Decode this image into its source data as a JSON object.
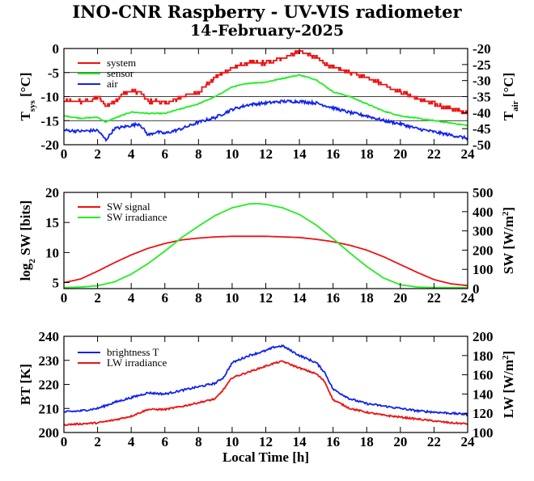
{
  "title": "INO-CNR Raspberry - UV-VIS radiometer",
  "subtitle": "14-February-2025",
  "chart_data": [
    {
      "type": "line",
      "x_ticks": [
        "0",
        "2",
        "4",
        "6",
        "8",
        "10",
        "12",
        "14",
        "16",
        "18",
        "20",
        "22",
        "24"
      ],
      "xlim": [
        0,
        24
      ],
      "xlabel": "",
      "ylabel_left": {
        "main": "T",
        "sub": "sys",
        "unit": " [°C]"
      },
      "ylabel_right": {
        "main": "T",
        "sub": "air",
        "unit": " [°C]"
      },
      "ylim": [
        -20,
        0
      ],
      "ylim_right": [
        -50,
        -20
      ],
      "y_ticks": [
        "-20",
        "-15",
        "-10",
        "-5",
        "0"
      ],
      "y_ticks_right": [
        "-50",
        "-45",
        "-40",
        "-35",
        "-30",
        "-25",
        "-20"
      ],
      "grid": "horizontal",
      "legend_position": "top-left",
      "series": [
        {
          "name": "system",
          "color": "#ee1111",
          "axis": "left",
          "step": 0.5,
          "noise": 0.35,
          "x": [
            0,
            1,
            1.5,
            2,
            2.5,
            3,
            3.5,
            4,
            4.5,
            5,
            5.5,
            6,
            7,
            8,
            9,
            10,
            11,
            12,
            13,
            14,
            15,
            16,
            17,
            18,
            19,
            20,
            21,
            22,
            23,
            24
          ],
          "y": [
            -11,
            -11,
            -11,
            -10,
            -12,
            -11,
            -9.5,
            -9,
            -9,
            -11,
            -11,
            -11.5,
            -10,
            -9,
            -6,
            -4,
            -3,
            -3,
            -2,
            -0.5,
            -2,
            -4,
            -5,
            -6,
            -7.5,
            -9,
            -10.5,
            -11.5,
            -12.5,
            -13.5
          ]
        },
        {
          "name": "sensor",
          "color": "#22ee22",
          "axis": "left",
          "step": 0,
          "noise": 0.1,
          "x": [
            0,
            1,
            2,
            2.5,
            3,
            4,
            5,
            6,
            7,
            8,
            9,
            10,
            11,
            12,
            13,
            14,
            15,
            16,
            17,
            18,
            19,
            20,
            21,
            22,
            23,
            24
          ],
          "y": [
            -14,
            -14.5,
            -14.3,
            -15.3,
            -14.5,
            -13.2,
            -13.5,
            -13.5,
            -12.5,
            -11.5,
            -10,
            -8,
            -7.2,
            -7,
            -6.2,
            -5.5,
            -6.5,
            -9,
            -10,
            -11.5,
            -13,
            -14,
            -14.5,
            -15,
            -15.5,
            -16
          ]
        },
        {
          "name": "air",
          "color": "#1122ee",
          "axis": "right",
          "step": 0,
          "noise": 0.45,
          "x": [
            0,
            1,
            2,
            2.5,
            3,
            4,
            4.5,
            5,
            5.5,
            6,
            7,
            8,
            9,
            10,
            11,
            12,
            13,
            14,
            15,
            16,
            17,
            18,
            19,
            20,
            21,
            22,
            23,
            24
          ],
          "y": [
            -45.5,
            -45.8,
            -45.5,
            -48.5,
            -45,
            -44,
            -43.5,
            -47,
            -46,
            -46.5,
            -45,
            -43,
            -41.5,
            -39,
            -37.5,
            -37,
            -36.5,
            -36.5,
            -37,
            -38.5,
            -40,
            -41,
            -42.5,
            -43.5,
            -45,
            -46,
            -47,
            -48
          ]
        }
      ]
    },
    {
      "type": "line",
      "x_ticks": [
        "0",
        "2",
        "4",
        "6",
        "8",
        "10",
        "12",
        "14",
        "16",
        "18",
        "20",
        "22",
        "24"
      ],
      "xlim": [
        0,
        24
      ],
      "xlabel": "",
      "ylabel_left": {
        "main": "log",
        "sub": "2",
        "unit": " SW [bits]"
      },
      "ylabel_right": {
        "main": "SW [W/m",
        "sup": "2",
        "unit": "]"
      },
      "ylim": [
        4,
        20
      ],
      "ylim_right": [
        0,
        500
      ],
      "y_ticks": [
        "5",
        "10",
        "15",
        "20"
      ],
      "y_ticks_right": [
        "0",
        "100",
        "200",
        "300",
        "400",
        "500"
      ],
      "grid": "none",
      "legend_position": "top-left",
      "series": [
        {
          "name": "SW signal",
          "color": "#ee1111",
          "axis": "left",
          "step": 0,
          "noise": 0,
          "x": [
            0,
            1,
            2,
            3,
            4,
            5,
            6,
            7,
            8,
            9,
            10,
            11,
            12,
            13,
            14,
            15,
            16,
            17,
            18,
            19,
            20,
            21,
            22,
            23,
            24
          ],
          "y": [
            5,
            5.6,
            6.9,
            8.3,
            9.6,
            10.7,
            11.5,
            12.1,
            12.4,
            12.6,
            12.7,
            12.7,
            12.7,
            12.6,
            12.5,
            12.2,
            11.8,
            11.2,
            10.4,
            9.3,
            8,
            6.7,
            5.5,
            4.8,
            4.5
          ]
        },
        {
          "name": "SW irradiance",
          "color": "#22ee22",
          "axis": "right",
          "step": 0,
          "noise": 0,
          "x": [
            0,
            1,
            2,
            3,
            4,
            5,
            6,
            7,
            8,
            9,
            10,
            11,
            11.5,
            12,
            13,
            14,
            15,
            16,
            17,
            18,
            19,
            20,
            21,
            22,
            23,
            24
          ],
          "y": [
            5,
            8,
            15,
            35,
            75,
            130,
            195,
            265,
            325,
            380,
            420,
            440,
            442,
            438,
            420,
            385,
            330,
            260,
            185,
            115,
            55,
            20,
            8,
            5,
            5,
            5
          ]
        }
      ]
    },
    {
      "type": "line",
      "x_ticks": [
        "0",
        "2",
        "4",
        "6",
        "8",
        "10",
        "12",
        "14",
        "16",
        "18",
        "20",
        "22",
        "24"
      ],
      "xlim": [
        0,
        24
      ],
      "xlabel": "Local Time [h]",
      "ylabel_left": {
        "main": "BT [K]",
        "sub": "",
        "unit": ""
      },
      "ylabel_right": {
        "main": "LW [W/m",
        "sup": "2",
        "unit": "]"
      },
      "ylim": [
        200,
        240
      ],
      "ylim_right": [
        100,
        200
      ],
      "y_ticks": [
        "200",
        "210",
        "220",
        "230",
        "240"
      ],
      "y_ticks_right": [
        "100",
        "120",
        "140",
        "160",
        "180",
        "200"
      ],
      "grid": "none",
      "legend_position": "top-left",
      "series": [
        {
          "name": "brightness T",
          "color": "#1122ee",
          "axis": "left",
          "step": 0,
          "noise": 0.4,
          "x": [
            0,
            1,
            2,
            3,
            4,
            5,
            6,
            7,
            8,
            9,
            9.5,
            10,
            11,
            12,
            12.5,
            13,
            14,
            15,
            15.5,
            16,
            17,
            18,
            19,
            20,
            21,
            22,
            23,
            24
          ],
          "y": [
            208.5,
            209,
            210,
            212.5,
            214.5,
            216.5,
            216,
            217.5,
            219,
            220.5,
            223,
            229,
            232,
            234,
            235.5,
            236,
            232,
            229,
            225,
            218,
            214,
            212,
            211,
            210,
            209,
            208.5,
            208,
            207.5
          ]
        },
        {
          "name": "LW irradiance",
          "color": "#ee1111",
          "axis": "right",
          "step": 0,
          "noise": 0.8,
          "x": [
            0,
            1,
            2,
            3,
            4,
            5,
            6,
            7,
            8,
            9,
            9.5,
            10,
            11,
            12,
            12.5,
            13,
            14,
            15,
            15.5,
            16,
            17,
            18,
            19,
            20,
            21,
            22,
            23,
            24
          ],
          "y": [
            108,
            109,
            110,
            113,
            117,
            124,
            124,
            127,
            131,
            135,
            145,
            157,
            163,
            169,
            172,
            174,
            167,
            161,
            153,
            134,
            125,
            121,
            118,
            116,
            114,
            112,
            110,
            109
          ]
        }
      ]
    }
  ]
}
